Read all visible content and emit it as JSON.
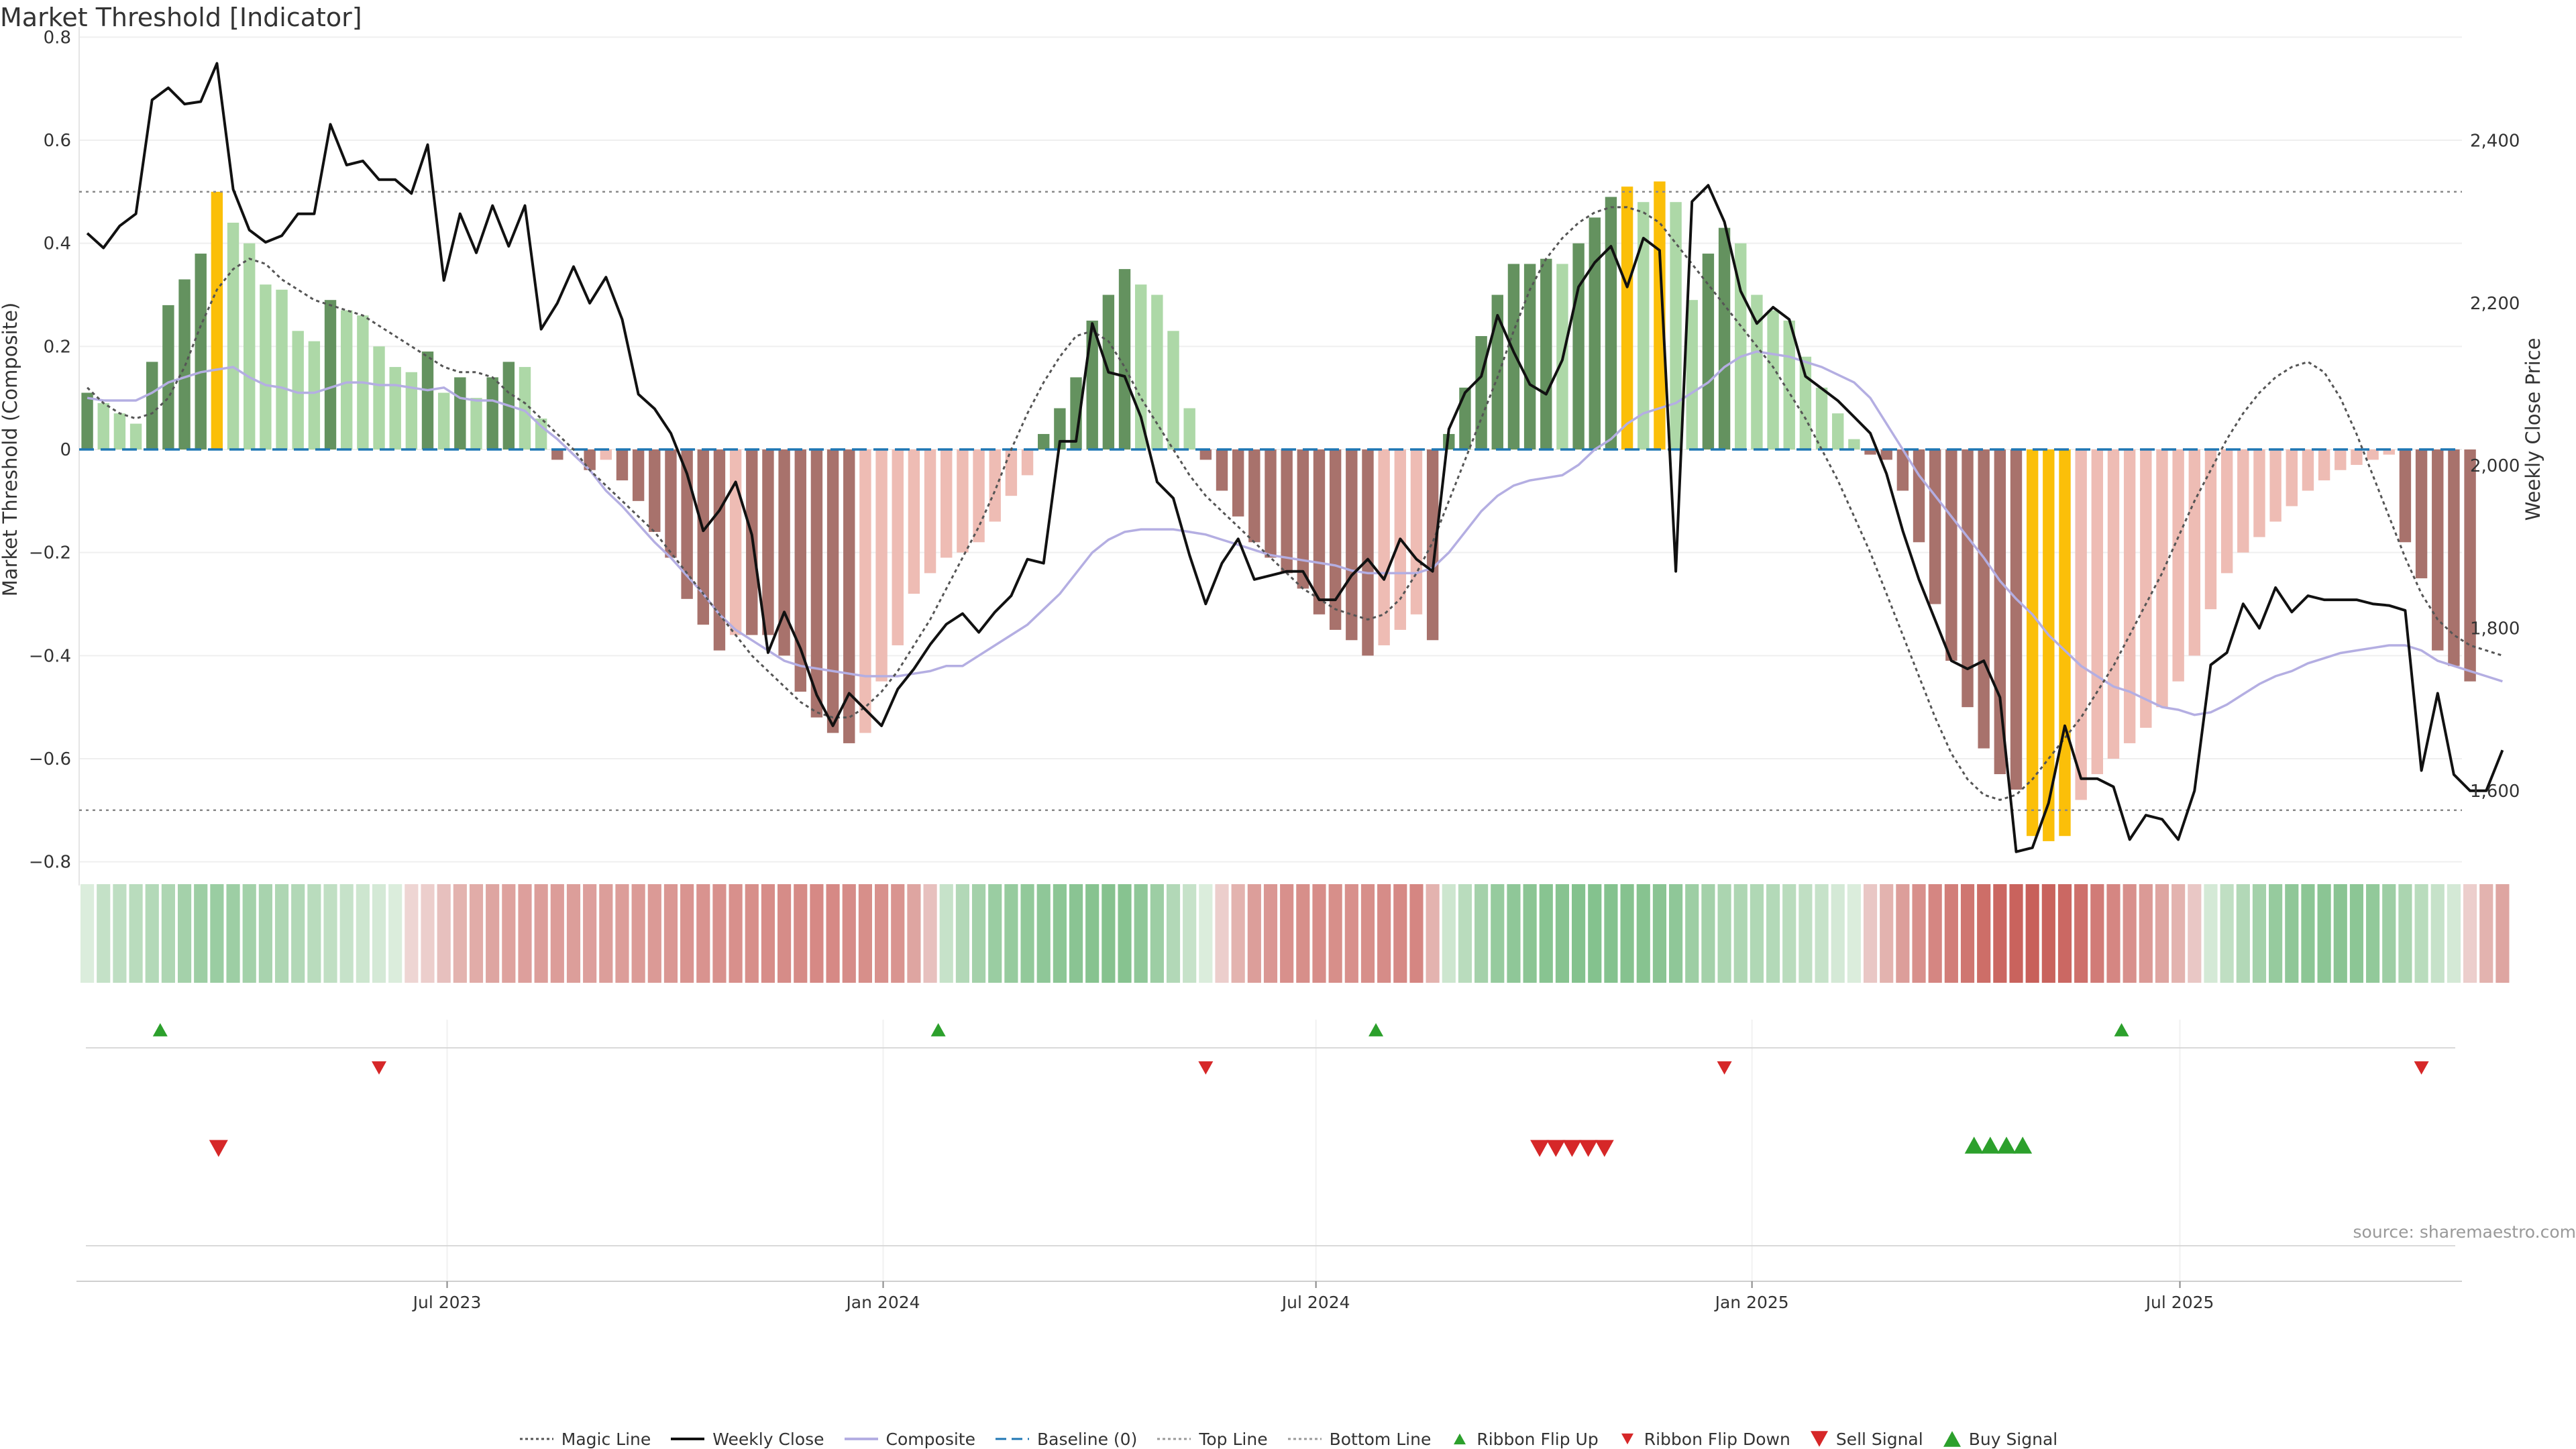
{
  "title": "Market Threshold [Indicator]",
  "source": "source: sharemaestro.com",
  "colors": {
    "bar_dark_green": "#64925f",
    "bar_light_green": "#add8a7",
    "bar_dark_red": "#a8726c",
    "bar_light_red": "#eebcb4",
    "bar_extreme": "#fbbf09",
    "weekly_close": "#111111",
    "composite": "#b4aee2",
    "magic_line": "#555555",
    "baseline": "#1f77b4",
    "threshold_line": "#888888",
    "buy": "#2ca02c",
    "sell": "#d62728"
  },
  "legend": [
    {
      "label": "Magic Line",
      "kind": "dotted",
      "color": "#555555"
    },
    {
      "label": "Weekly Close",
      "kind": "solid",
      "color": "#111111"
    },
    {
      "label": "Composite",
      "kind": "solid",
      "color": "#b4aee2"
    },
    {
      "label": "Baseline (0)",
      "kind": "dashed",
      "color": "#1f77b4"
    },
    {
      "label": "Top Line",
      "kind": "dotted",
      "color": "#999999"
    },
    {
      "label": "Bottom Line",
      "kind": "dotted",
      "color": "#999999"
    },
    {
      "label": "Ribbon Flip Up",
      "kind": "tri-up-small",
      "color": "#2ca02c"
    },
    {
      "label": "Ribbon Flip Down",
      "kind": "tri-down-small",
      "color": "#d62728"
    },
    {
      "label": "Sell Signal",
      "kind": "tri-down",
      "color": "#d62728"
    },
    {
      "label": "Buy Signal",
      "kind": "tri-up",
      "color": "#2ca02c"
    }
  ],
  "chart_data": {
    "type": "bar",
    "title": "Market Threshold [Indicator]",
    "ylabel": "Market Threshold (Composite)",
    "y2label": "Weekly Close Price",
    "ylim": [
      -0.82,
      0.82
    ],
    "y2lim": [
      1500,
      2540
    ],
    "yticks": [
      0.8,
      0.6,
      0.4,
      0.2,
      0,
      -0.2,
      -0.4,
      -0.6,
      -0.8
    ],
    "ytick_labels": [
      "0.8",
      "0.6",
      "0.4",
      "0.2",
      "0",
      "−0.2",
      "−0.4",
      "−0.6",
      "−0.8"
    ],
    "y2ticks": [
      2400,
      2200,
      2000,
      1800,
      1600
    ],
    "y2tick_labels": [
      "2,400",
      "2,200",
      "2,000",
      "1,800",
      "1,600"
    ],
    "top_line": 0.5,
    "bottom_line": -0.7,
    "baseline": 0,
    "week_range": [
      0,
      147
    ],
    "x_ticks": [
      {
        "week": 22.7,
        "label": "Jul 2023"
      },
      {
        "week": 49.6,
        "label": "Jan 2024"
      },
      {
        "week": 76.3,
        "label": "Jul 2024"
      },
      {
        "week": 103.2,
        "label": "Jan 2025"
      },
      {
        "week": 129.6,
        "label": "Jul 2025"
      }
    ],
    "composite_bars": [
      0.11,
      0.09,
      0.07,
      0.05,
      0.17,
      0.28,
      0.33,
      0.38,
      0.5,
      0.44,
      0.4,
      0.32,
      0.31,
      0.23,
      0.21,
      0.29,
      0.27,
      0.26,
      0.2,
      0.16,
      0.15,
      0.19,
      0.11,
      0.14,
      0.1,
      0.14,
      0.17,
      0.16,
      0.06,
      -0.02,
      0.0,
      -0.04,
      -0.02,
      -0.06,
      -0.1,
      -0.16,
      -0.21,
      -0.29,
      -0.34,
      -0.39,
      -0.36,
      -0.36,
      -0.36,
      -0.4,
      -0.47,
      -0.52,
      -0.55,
      -0.57,
      -0.55,
      -0.45,
      -0.38,
      -0.28,
      -0.24,
      -0.21,
      -0.2,
      -0.18,
      -0.14,
      -0.09,
      -0.05,
      0.03,
      0.08,
      0.14,
      0.25,
      0.3,
      0.35,
      0.32,
      0.3,
      0.23,
      0.08,
      -0.02,
      -0.08,
      -0.13,
      -0.18,
      -0.21,
      -0.24,
      -0.27,
      -0.32,
      -0.35,
      -0.37,
      -0.4,
      -0.38,
      -0.35,
      -0.32,
      -0.37,
      0.03,
      0.12,
      0.22,
      0.3,
      0.36,
      0.36,
      0.37,
      0.36,
      0.4,
      0.45,
      0.49,
      0.51,
      0.48,
      0.52,
      0.48,
      0.29,
      0.38,
      0.43,
      0.4,
      0.3,
      0.27,
      0.25,
      0.18,
      0.12,
      0.07,
      0.02,
      -0.01,
      -0.02,
      -0.08,
      -0.18,
      -0.3,
      -0.41,
      -0.5,
      -0.58,
      -0.63,
      -0.66,
      -0.75,
      -0.76,
      -0.75,
      -0.68,
      -0.63,
      -0.6,
      -0.57,
      -0.54,
      -0.5,
      -0.45,
      -0.4,
      -0.31,
      -0.24,
      -0.2,
      -0.17,
      -0.14,
      -0.11,
      -0.08,
      -0.06,
      -0.04,
      -0.03,
      -0.02,
      -0.01,
      -0.18,
      -0.25,
      -0.39,
      -0.42,
      -0.45
    ],
    "weekly_close": [
      2286,
      2268,
      2295,
      2310,
      2450,
      2465,
      2445,
      2448,
      2495,
      2340,
      2290,
      2275,
      2283,
      2310,
      2310,
      2420,
      2370,
      2375,
      2352,
      2352,
      2335,
      2395,
      2228,
      2310,
      2262,
      2320,
      2270,
      2320,
      2168,
      2200,
      2245,
      2200,
      2232,
      2180,
      2088,
      2070,
      2040,
      1990,
      1920,
      1945,
      1980,
      1915,
      1770,
      1820,
      1775,
      1718,
      1680,
      1720,
      1700,
      1680,
      1725,
      1750,
      1780,
      1805,
      1818,
      1795,
      1820,
      1840,
      1885,
      1880,
      2030,
      2030,
      2175,
      2115,
      2110,
      2060,
      1980,
      1960,
      1890,
      1830,
      1880,
      1910,
      1860,
      1865,
      1870,
      1870,
      1835,
      1835,
      1865,
      1885,
      1860,
      1910,
      1885,
      1870,
      2045,
      2090,
      2110,
      2185,
      2140,
      2100,
      2088,
      2130,
      2220,
      2250,
      2270,
      2220,
      2280,
      2265,
      1870,
      2325,
      2345,
      2300,
      2215,
      2175,
      2195,
      2180,
      2110,
      2095,
      2080,
      2060,
      2040,
      1990,
      1920,
      1860,
      1810,
      1760,
      1750,
      1760,
      1715,
      1525,
      1530,
      1585,
      1680,
      1615,
      1615,
      1605,
      1540,
      1570,
      1565,
      1540,
      1600,
      1755,
      1770,
      1830,
      1800,
      1850,
      1820,
      1840,
      1835,
      1835,
      1835,
      1830,
      1828,
      1822,
      1625,
      1720,
      1620,
      1600,
      1600,
      1650
    ],
    "composite": [
      0.1,
      0.095,
      0.095,
      0.095,
      0.11,
      0.13,
      0.14,
      0.15,
      0.155,
      0.16,
      0.14,
      0.125,
      0.12,
      0.11,
      0.11,
      0.12,
      0.13,
      0.13,
      0.125,
      0.125,
      0.12,
      0.115,
      0.12,
      0.1,
      0.095,
      0.095,
      0.085,
      0.075,
      0.045,
      0.02,
      -0.01,
      -0.04,
      -0.08,
      -0.11,
      -0.145,
      -0.18,
      -0.21,
      -0.245,
      -0.28,
      -0.32,
      -0.35,
      -0.37,
      -0.39,
      -0.41,
      -0.42,
      -0.425,
      -0.43,
      -0.435,
      -0.44,
      -0.44,
      -0.44,
      -0.435,
      -0.43,
      -0.42,
      -0.42,
      -0.4,
      -0.38,
      -0.36,
      -0.34,
      -0.31,
      -0.28,
      -0.24,
      -0.2,
      -0.175,
      -0.16,
      -0.155,
      -0.155,
      -0.155,
      -0.16,
      -0.165,
      -0.175,
      -0.185,
      -0.195,
      -0.205,
      -0.21,
      -0.215,
      -0.22,
      -0.225,
      -0.235,
      -0.24,
      -0.24,
      -0.24,
      -0.24,
      -0.23,
      -0.2,
      -0.16,
      -0.12,
      -0.09,
      -0.07,
      -0.06,
      -0.055,
      -0.05,
      -0.03,
      0.0,
      0.02,
      0.05,
      0.07,
      0.08,
      0.09,
      0.11,
      0.13,
      0.16,
      0.18,
      0.19,
      0.185,
      0.18,
      0.17,
      0.16,
      0.145,
      0.13,
      0.1,
      0.05,
      0.0,
      -0.05,
      -0.09,
      -0.13,
      -0.17,
      -0.21,
      -0.255,
      -0.29,
      -0.32,
      -0.36,
      -0.39,
      -0.42,
      -0.44,
      -0.46,
      -0.47,
      -0.485,
      -0.5,
      -0.505,
      -0.515,
      -0.51,
      -0.495,
      -0.475,
      -0.455,
      -0.44,
      -0.43,
      -0.415,
      -0.405,
      -0.395,
      -0.39,
      -0.385,
      -0.38,
      -0.38,
      -0.39,
      -0.41,
      -0.42,
      -0.43,
      -0.44,
      -0.45
    ],
    "magic_line": [
      0.12,
      0.09,
      0.07,
      0.06,
      0.07,
      0.1,
      0.16,
      0.24,
      0.31,
      0.35,
      0.37,
      0.36,
      0.33,
      0.31,
      0.29,
      0.28,
      0.27,
      0.26,
      0.24,
      0.22,
      0.2,
      0.18,
      0.16,
      0.15,
      0.15,
      0.14,
      0.11,
      0.09,
      0.06,
      0.03,
      0.0,
      -0.04,
      -0.07,
      -0.1,
      -0.13,
      -0.16,
      -0.2,
      -0.24,
      -0.28,
      -0.32,
      -0.36,
      -0.4,
      -0.43,
      -0.46,
      -0.49,
      -0.51,
      -0.52,
      -0.52,
      -0.5,
      -0.47,
      -0.43,
      -0.38,
      -0.33,
      -0.27,
      -0.21,
      -0.15,
      -0.08,
      0.0,
      0.07,
      0.13,
      0.18,
      0.22,
      0.23,
      0.21,
      0.16,
      0.1,
      0.05,
      0.0,
      -0.05,
      -0.09,
      -0.12,
      -0.15,
      -0.18,
      -0.21,
      -0.24,
      -0.27,
      -0.29,
      -0.31,
      -0.32,
      -0.33,
      -0.32,
      -0.29,
      -0.24,
      -0.18,
      -0.1,
      -0.02,
      0.06,
      0.14,
      0.23,
      0.31,
      0.37,
      0.41,
      0.44,
      0.46,
      0.47,
      0.47,
      0.46,
      0.44,
      0.4,
      0.36,
      0.32,
      0.28,
      0.24,
      0.2,
      0.16,
      0.11,
      0.06,
      0.0,
      -0.06,
      -0.13,
      -0.2,
      -0.28,
      -0.36,
      -0.44,
      -0.52,
      -0.59,
      -0.64,
      -0.67,
      -0.68,
      -0.67,
      -0.64,
      -0.6,
      -0.56,
      -0.52,
      -0.47,
      -0.42,
      -0.36,
      -0.3,
      -0.24,
      -0.17,
      -0.1,
      -0.04,
      0.02,
      0.07,
      0.11,
      0.14,
      0.16,
      0.17,
      0.15,
      0.1,
      0.03,
      -0.05,
      -0.13,
      -0.21,
      -0.28,
      -0.33,
      -0.36,
      -0.38,
      -0.39,
      -0.4
    ],
    "ribbon_strip": [
      0.05,
      0.22,
      0.26,
      0.3,
      0.34,
      0.38,
      0.45,
      0.5,
      0.52,
      0.5,
      0.46,
      0.42,
      0.38,
      0.35,
      0.3,
      0.25,
      0.2,
      0.15,
      0.1,
      0.05,
      -0.05,
      -0.1,
      -0.2,
      -0.3,
      -0.35,
      -0.4,
      -0.42,
      -0.44,
      -0.45,
      -0.46,
      -0.45,
      -0.44,
      -0.45,
      -0.46,
      -0.47,
      -0.48,
      -0.5,
      -0.52,
      -0.53,
      -0.54,
      -0.55,
      -0.56,
      -0.57,
      -0.58,
      -0.59,
      -0.6,
      -0.6,
      -0.58,
      -0.56,
      -0.54,
      -0.52,
      -0.4,
      -0.2,
      0.2,
      0.35,
      0.45,
      0.52,
      0.55,
      0.58,
      0.6,
      0.62,
      0.64,
      0.66,
      0.67,
      0.66,
      0.6,
      0.5,
      0.35,
      0.2,
      0.05,
      -0.1,
      -0.3,
      -0.45,
      -0.5,
      -0.55,
      -0.56,
      -0.57,
      -0.56,
      -0.55,
      -0.56,
      -0.58,
      -0.6,
      -0.62,
      -0.3,
      0.15,
      0.3,
      0.45,
      0.55,
      0.6,
      0.63,
      0.65,
      0.66,
      0.68,
      0.68,
      0.68,
      0.67,
      0.66,
      0.64,
      0.6,
      0.5,
      0.45,
      0.4,
      0.38,
      0.36,
      0.34,
      0.3,
      0.25,
      0.2,
      0.1,
      0.05,
      -0.15,
      -0.3,
      -0.45,
      -0.55,
      -0.62,
      -0.68,
      -0.74,
      -0.8,
      -0.85,
      -0.88,
      -0.9,
      -0.88,
      -0.84,
      -0.78,
      -0.7,
      -0.62,
      -0.55,
      -0.48,
      -0.4,
      -0.3,
      -0.15,
      0.1,
      0.25,
      0.35,
      0.45,
      0.55,
      0.6,
      0.62,
      0.63,
      0.64,
      0.62,
      0.58,
      0.5,
      0.4,
      0.3,
      0.2,
      0.1,
      -0.1,
      -0.3,
      -0.4
    ],
    "ribbon_flip_up": [
      5,
      53,
      80,
      126
    ],
    "ribbon_flip_down": [
      18.5,
      69.5,
      101.5,
      144.5
    ],
    "sell_signals": [
      8.6,
      90.1,
      91.1,
      92.1,
      93.1,
      94.1
    ],
    "buy_signals": [
      116.9,
      117.9,
      118.9,
      119.9
    ]
  }
}
